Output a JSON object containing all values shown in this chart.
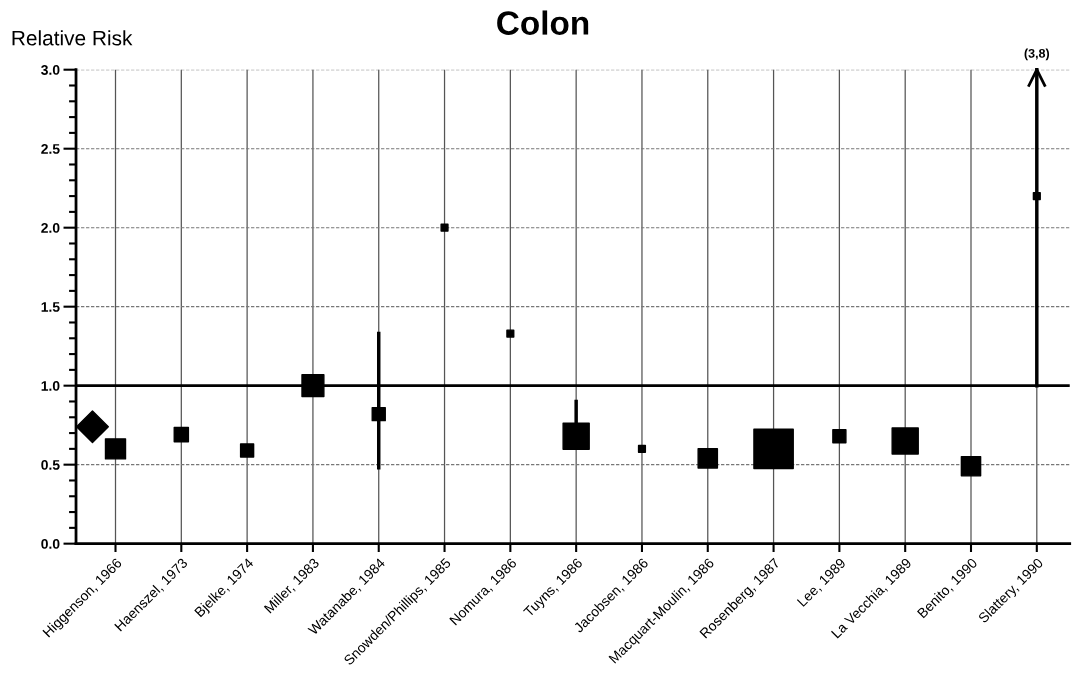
{
  "chart_data": {
    "type": "bubble",
    "title": "Colon",
    "ylabel": "Relative Risk",
    "categories": [
      "Higgenson, 1966",
      "Haenszel, 1973",
      "Bjelke, 1974",
      "Miller, 1983",
      "Watanabe, 1984",
      "Snowden/Phillips, 1985",
      "Nomura, 1986",
      "Tuyns, 1986",
      "Jacobsen, 1986",
      "Macquart-Moulin, 1986",
      "Rosenberg, 1987",
      "Lee, 1989",
      "La Vecchia, 1989",
      "Benito, 1990",
      "Slattery, 1990"
    ],
    "series": [
      {
        "color": "#000000",
        "marker": "square",
        "values": [
          0.6,
          0.69,
          0.59,
          1.0,
          0.82,
          2.0,
          1.33,
          0.68,
          0.6,
          0.54,
          0.6,
          0.68,
          0.65,
          0.49,
          2.2
        ],
        "sizes": [
          0.26,
          0.13,
          0.11,
          0.31,
          0.11,
          0.03,
          0.03,
          0.44,
          0.03,
          0.24,
          1,
          0.11,
          0.44,
          0.24,
          0.03
        ],
        "errors": [
          null,
          null,
          null,
          null,
          [
            0.48,
            1.33
          ],
          null,
          null,
          [
            0.68,
            0.9
          ],
          null,
          null,
          null,
          null,
          null,
          null,
          [
            1.0,
            3.0
          ]
        ]
      },
      {
        "type": "scatter",
        "color": "#000000",
        "marker": "diamond",
        "values": [
          0.74,
          null,
          null,
          null,
          null,
          null,
          null,
          null,
          null,
          null,
          null,
          null,
          null,
          null,
          null
        ]
      }
    ],
    "ylim": [
      0,
      3.0
    ],
    "yticks": [
      {
        "value": 0,
        "label": "0.0"
      },
      {
        "value": 0.1,
        "label": null
      },
      {
        "value": 0.2,
        "label": null
      },
      {
        "value": 0.3,
        "label": null
      },
      {
        "value": 0.4,
        "label": null
      },
      {
        "value": 0.5,
        "label": "0.5"
      },
      {
        "value": 0.6,
        "label": null
      },
      {
        "value": 0.7,
        "label": null
      },
      {
        "value": 0.8,
        "label": null
      },
      {
        "value": 0.9,
        "label": null
      },
      {
        "value": 1.0,
        "label": "1.0"
      },
      {
        "value": 1.1,
        "label": null
      },
      {
        "value": 1.2,
        "label": null
      },
      {
        "value": 1.3,
        "label": null
      },
      {
        "value": 1.4,
        "label": null
      },
      {
        "value": 1.5,
        "label": "1.5"
      },
      {
        "value": 1.6,
        "label": null
      },
      {
        "value": 1.7,
        "label": null
      },
      {
        "value": 1.8,
        "label": null
      },
      {
        "value": 1.9,
        "label": null
      },
      {
        "value": 2.0,
        "label": "2.0"
      },
      {
        "value": 2.1,
        "label": null
      },
      {
        "value": 2.2,
        "label": null
      },
      {
        "value": 2.3,
        "label": null
      },
      {
        "value": 2.4,
        "label": null
      },
      {
        "value": 2.5,
        "label": "2.5"
      },
      {
        "value": 2.6,
        "label": null
      },
      {
        "value": 2.7,
        "label": null
      },
      {
        "value": 2.8,
        "label": null
      },
      {
        "value": 2.9,
        "label": null
      },
      {
        "value": 3.0,
        "label": "3.0"
      }
    ],
    "ref_lines": [
      {
        "axis": "y",
        "value": 1.0,
        "color": "#000000",
        "line_style": "solid"
      }
    ],
    "annotations": [
      "(3,8)"
    ],
    "grid": true
  }
}
